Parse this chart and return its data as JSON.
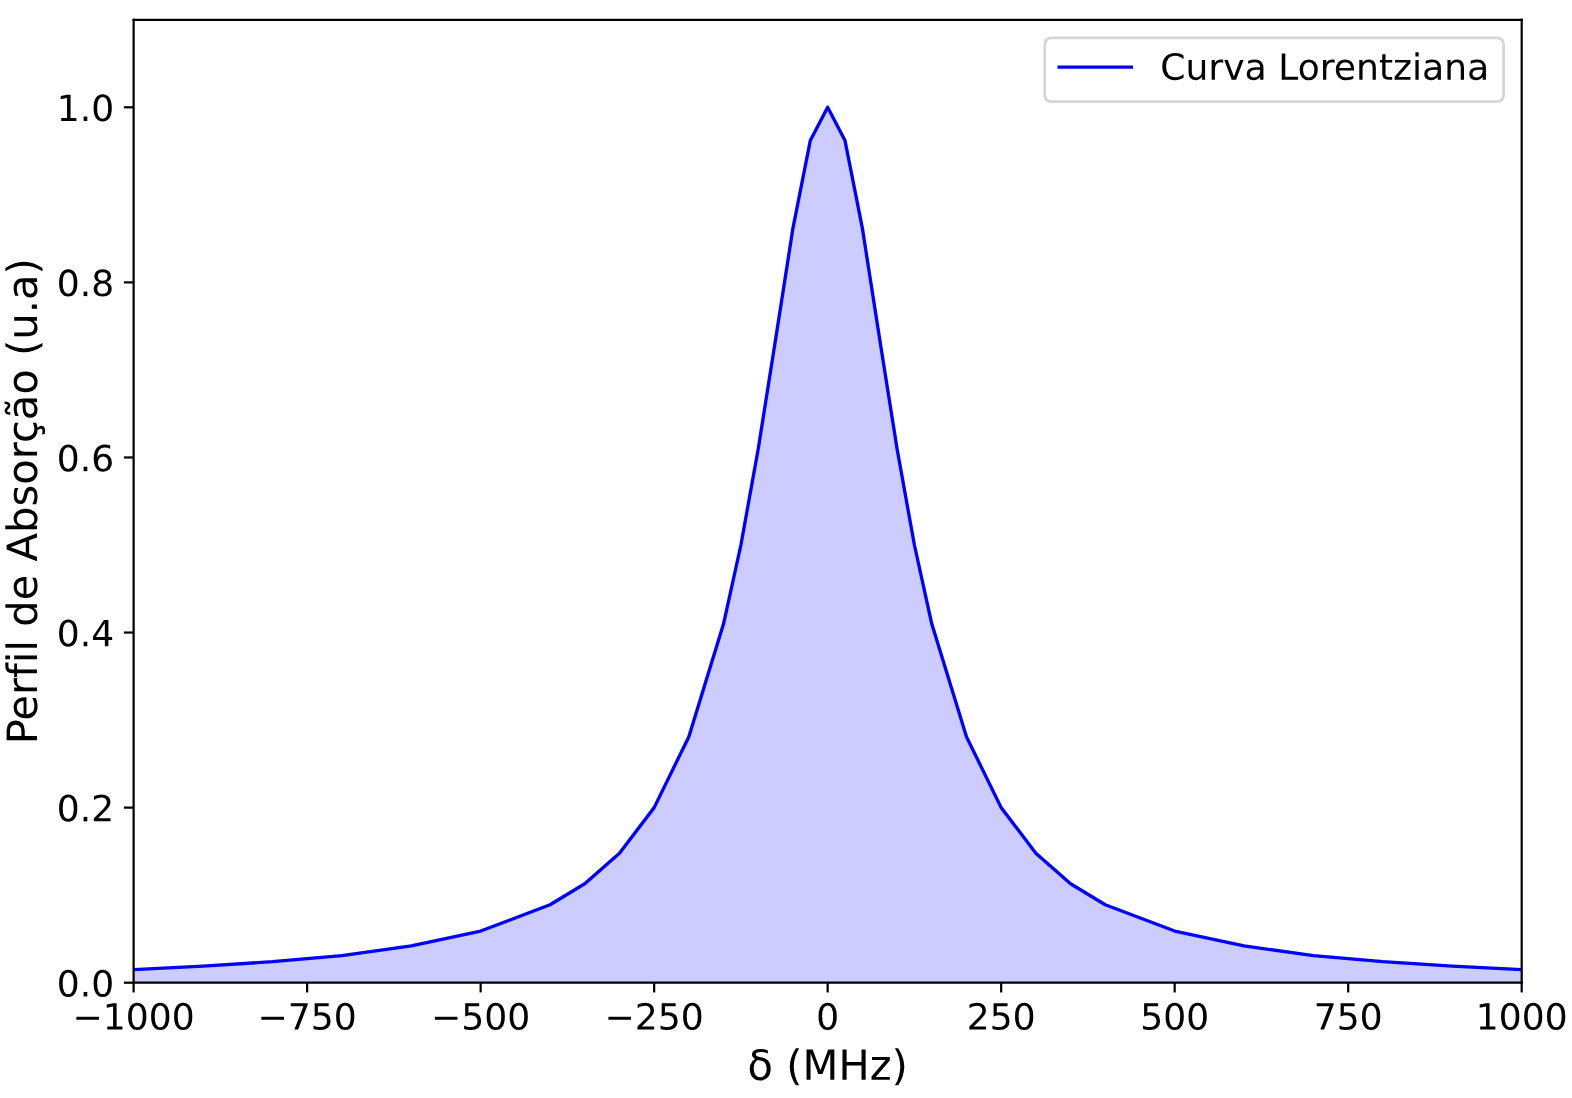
{
  "chart_data": {
    "type": "area",
    "xlabel": "δ (MHz)",
    "ylabel": "Perfil de Absorção (u.a)",
    "series": [
      {
        "name": "Curva Lorentziana",
        "color": "#0000ff",
        "x": [
          -1000,
          -900,
          -800,
          -700,
          -600,
          -500,
          -400,
          -350,
          -300,
          -250,
          -200,
          -150,
          -125,
          -100,
          -75,
          -50,
          -25,
          0,
          25,
          50,
          75,
          100,
          125,
          150,
          200,
          250,
          300,
          350,
          400,
          500,
          600,
          700,
          800,
          900,
          1000
        ],
        "values": [
          0.015,
          0.019,
          0.024,
          0.031,
          0.042,
          0.059,
          0.089,
          0.113,
          0.148,
          0.2,
          0.281,
          0.41,
          0.5,
          0.61,
          0.735,
          0.862,
          0.962,
          1.0,
          0.962,
          0.862,
          0.735,
          0.61,
          0.5,
          0.41,
          0.281,
          0.2,
          0.148,
          0.113,
          0.089,
          0.059,
          0.042,
          0.031,
          0.024,
          0.019,
          0.015
        ]
      }
    ],
    "xlim": [
      -1000,
      1000
    ],
    "xticks": [
      {
        "value": -1000,
        "label": "−1000"
      },
      {
        "value": -750,
        "label": "−750"
      },
      {
        "value": -500,
        "label": "−500"
      },
      {
        "value": -250,
        "label": "−250"
      },
      0,
      250,
      500,
      750,
      1000
    ],
    "ylim": [
      0,
      1.1
    ],
    "yticks": [
      {
        "value": 0,
        "label": "0.0"
      },
      0.2,
      0.4,
      0.6,
      0.8,
      {
        "value": 1,
        "label": "1.0"
      }
    ],
    "legend": "top right",
    "grid": false
  }
}
